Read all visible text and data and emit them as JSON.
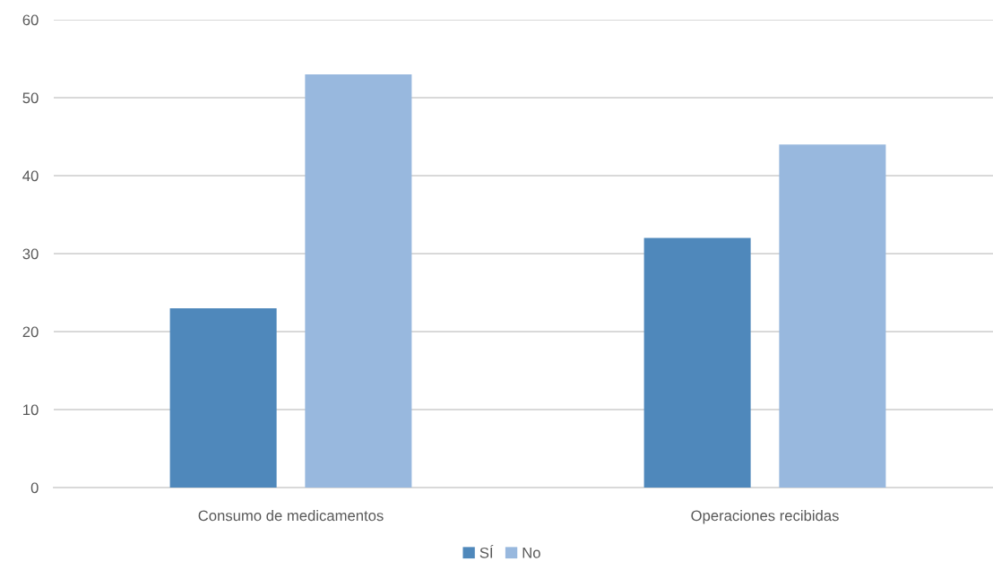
{
  "chart_data": {
    "type": "bar",
    "categories": [
      "Consumo de medicamentos",
      "Operaciones recibidas"
    ],
    "series": [
      {
        "name": "SÍ",
        "color": "#4f88bb",
        "values": [
          23,
          32
        ]
      },
      {
        "name": "No",
        "color": "#98b8de",
        "values": [
          53,
          44
        ]
      }
    ],
    "ylim": [
      0,
      60
    ],
    "yticks": [
      0,
      10,
      20,
      30,
      40,
      50,
      60
    ],
    "grid": "y",
    "legend": "bottom"
  }
}
